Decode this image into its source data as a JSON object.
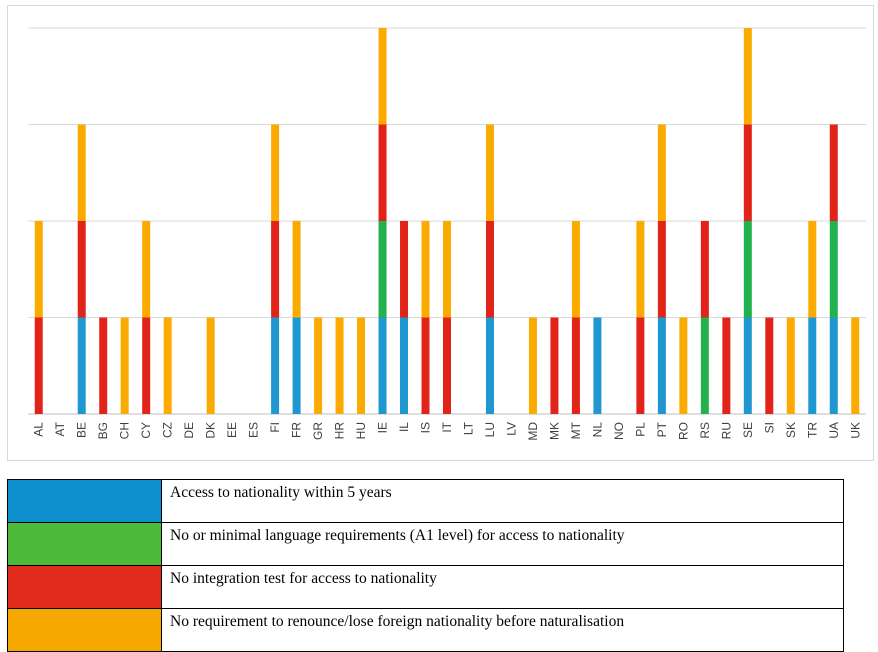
{
  "chart_data": {
    "type": "bar",
    "stacked": true,
    "categories": [
      "AL",
      "AT",
      "BE",
      "BG",
      "CH",
      "CY",
      "CZ",
      "DE",
      "DK",
      "EE",
      "ES",
      "FI",
      "FR",
      "GR",
      "HR",
      "HU",
      "IE",
      "IL",
      "IS",
      "IT",
      "LT",
      "LU",
      "LV",
      "MD",
      "MK",
      "MT",
      "NL",
      "NO",
      "PL",
      "PT",
      "RO",
      "RS",
      "RU",
      "SE",
      "SI",
      "SK",
      "TR",
      "UA",
      "UK"
    ],
    "series": [
      {
        "name": "Access to nationality within 5 years",
        "color": "#1f97d0",
        "values": [
          0,
          0,
          1,
          0,
          0,
          0,
          0,
          0,
          0,
          0,
          0,
          1,
          1,
          0,
          0,
          0,
          1,
          1,
          0,
          0,
          0,
          1,
          0,
          0,
          0,
          0,
          1,
          0,
          0,
          1,
          0,
          0,
          0,
          1,
          0,
          0,
          1,
          1,
          0
        ]
      },
      {
        "name": "No or minimal language requirements (A1 level) for access to nationality",
        "color": "#22b14c",
        "values": [
          0,
          0,
          0,
          0,
          0,
          0,
          0,
          0,
          0,
          0,
          0,
          0,
          0,
          0,
          0,
          0,
          1,
          0,
          0,
          0,
          0,
          0,
          0,
          0,
          0,
          0,
          0,
          0,
          0,
          0,
          0,
          1,
          0,
          1,
          0,
          0,
          0,
          1,
          0
        ]
      },
      {
        "name": "No integration test for access to nationality",
        "color": "#e2231a",
        "values": [
          1,
          0,
          1,
          1,
          0,
          1,
          0,
          0,
          0,
          0,
          0,
          1,
          0,
          0,
          0,
          0,
          1,
          1,
          1,
          1,
          0,
          1,
          0,
          0,
          1,
          1,
          0,
          0,
          1,
          1,
          0,
          1,
          1,
          1,
          1,
          0,
          0,
          1,
          0
        ]
      },
      {
        "name": "No requirement to renounce/lose foreign nationality before naturalisation",
        "color": "#fbab00",
        "values": [
          1,
          0,
          1,
          0,
          1,
          1,
          1,
          0,
          1,
          0,
          0,
          1,
          1,
          1,
          1,
          1,
          1,
          0,
          1,
          1,
          0,
          1,
          0,
          1,
          0,
          1,
          0,
          0,
          1,
          1,
          1,
          0,
          0,
          1,
          0,
          1,
          1,
          0,
          1
        ]
      }
    ],
    "ylim": [
      0,
      4
    ],
    "grid": true,
    "title": "",
    "xlabel": "",
    "ylabel": ""
  },
  "legend": {
    "items": [
      {
        "label": "Access to nationality within 5 years",
        "color": "#0e8fce"
      },
      {
        "label": "No or minimal language requirements (A1 level) for access to nationality",
        "color": "#4cba38"
      },
      {
        "label": "No integration test for access to nationality",
        "color": "#e02b1c"
      },
      {
        "label": "No requirement to renounce/lose foreign nationality before naturalisation",
        "color": "#f7a800"
      }
    ]
  }
}
